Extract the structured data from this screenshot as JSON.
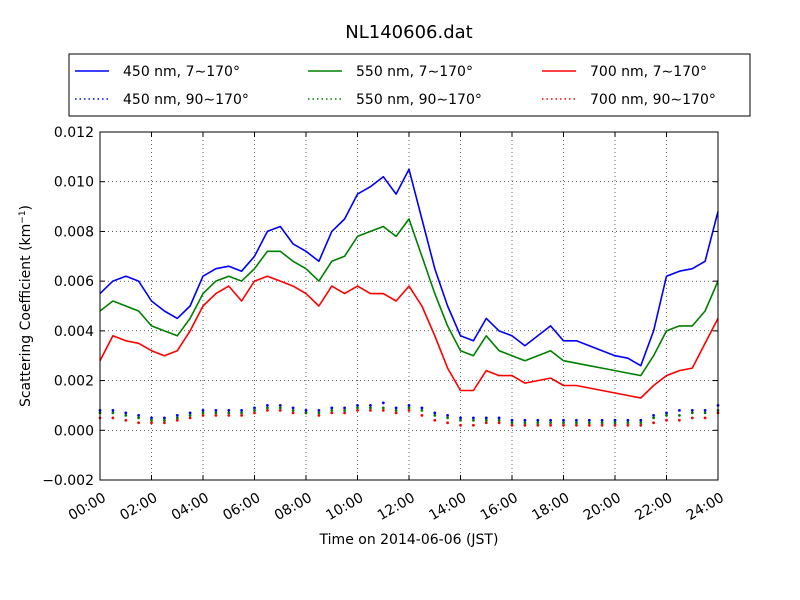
{
  "chart_data": {
    "type": "line",
    "title": "NL140606.dat",
    "xlabel": "Time on 2014-06-06 (JST)",
    "ylabel": "Scattering Coefficient (km",
    "ylabel_sup": "−1",
    "ylabel_end": ")",
    "x_unit": "hour",
    "xlim": [
      0,
      24
    ],
    "ylim": [
      -0.002,
      0.012
    ],
    "x_ticks": [
      0,
      2,
      4,
      6,
      8,
      10,
      12,
      14,
      16,
      18,
      20,
      22,
      24
    ],
    "x_tick_labels": [
      "00:00",
      "02:00",
      "04:00",
      "06:00",
      "08:00",
      "10:00",
      "12:00",
      "14:00",
      "16:00",
      "18:00",
      "20:00",
      "22:00",
      "24:00"
    ],
    "y_ticks": [
      -0.002,
      0.0,
      0.002,
      0.004,
      0.006,
      0.008,
      0.01,
      0.012
    ],
    "y_tick_labels": [
      "−0.002",
      "0.000",
      "0.002",
      "0.004",
      "0.006",
      "0.008",
      "0.010",
      "0.012"
    ],
    "grid": true,
    "legend_placement": "top, above plot (3 columns)",
    "x": [
      0,
      0.5,
      1,
      1.5,
      2,
      2.5,
      3,
      3.5,
      4,
      4.5,
      5,
      5.5,
      6,
      6.5,
      7,
      7.5,
      8,
      8.5,
      9,
      9.5,
      10,
      10.5,
      11,
      11.5,
      12,
      12.5,
      13,
      13.5,
      14,
      14.5,
      15,
      15.5,
      16,
      16.5,
      17,
      17.5,
      18,
      18.5,
      19,
      19.5,
      20,
      20.5,
      21,
      21.5,
      22,
      22.5,
      23,
      23.5,
      24
    ],
    "series": [
      {
        "name": "450 nm, 7∼170°",
        "color": "#0000ff",
        "style": "solid",
        "values": [
          0.0055,
          0.006,
          0.0062,
          0.006,
          0.0052,
          0.0048,
          0.0045,
          0.005,
          0.0062,
          0.0065,
          0.0066,
          0.0064,
          0.007,
          0.008,
          0.0082,
          0.0075,
          0.0072,
          0.0068,
          0.008,
          0.0085,
          0.0095,
          0.0098,
          0.0102,
          0.0095,
          0.0105,
          0.0085,
          0.0065,
          0.005,
          0.0038,
          0.0036,
          0.0045,
          0.004,
          0.0038,
          0.0034,
          0.0038,
          0.0042,
          0.0036,
          0.0036,
          0.0034,
          0.0032,
          0.003,
          0.0029,
          0.0026,
          0.004,
          0.0062,
          0.0064,
          0.0065,
          0.0068,
          0.0088
        ]
      },
      {
        "name": "450 nm, 90∼170°",
        "color": "#0000ff",
        "style": "dotted",
        "values": [
          0.0008,
          0.0008,
          0.0007,
          0.0006,
          0.0005,
          0.0005,
          0.0006,
          0.0007,
          0.0008,
          0.0008,
          0.0008,
          0.0008,
          0.0009,
          0.001,
          0.001,
          0.0009,
          0.0008,
          0.0008,
          0.0009,
          0.0009,
          0.001,
          0.001,
          0.0011,
          0.0009,
          0.001,
          0.0009,
          0.0007,
          0.0006,
          0.0005,
          0.0005,
          0.0005,
          0.0005,
          0.0004,
          0.0004,
          0.0004,
          0.0004,
          0.0004,
          0.0004,
          0.0004,
          0.0004,
          0.0004,
          0.0004,
          0.0004,
          0.0006,
          0.0007,
          0.0008,
          0.0008,
          0.0008,
          0.001
        ]
      },
      {
        "name": "550 nm, 7∼170°",
        "color": "#008000",
        "style": "solid",
        "values": [
          0.0048,
          0.0052,
          0.005,
          0.0048,
          0.0042,
          0.004,
          0.0038,
          0.0045,
          0.0055,
          0.006,
          0.0062,
          0.006,
          0.0065,
          0.0072,
          0.0072,
          0.0068,
          0.0065,
          0.006,
          0.0068,
          0.007,
          0.0078,
          0.008,
          0.0082,
          0.0078,
          0.0085,
          0.007,
          0.0055,
          0.0042,
          0.0032,
          0.003,
          0.0038,
          0.0032,
          0.003,
          0.0028,
          0.003,
          0.0032,
          0.0028,
          0.0027,
          0.0026,
          0.0025,
          0.0024,
          0.0023,
          0.0022,
          0.003,
          0.004,
          0.0042,
          0.0042,
          0.0048,
          0.006
        ]
      },
      {
        "name": "550 nm, 90∼170°",
        "color": "#008000",
        "style": "dotted",
        "values": [
          0.0007,
          0.0007,
          0.0006,
          0.0005,
          0.0004,
          0.0004,
          0.0005,
          0.0006,
          0.0007,
          0.0007,
          0.0007,
          0.0007,
          0.0008,
          0.0009,
          0.0009,
          0.0008,
          0.0007,
          0.0007,
          0.0008,
          0.0008,
          0.0009,
          0.0009,
          0.0009,
          0.0008,
          0.0009,
          0.0008,
          0.0006,
          0.0005,
          0.0004,
          0.0004,
          0.0004,
          0.0004,
          0.0003,
          0.0003,
          0.0003,
          0.0003,
          0.0003,
          0.0003,
          0.0003,
          0.0003,
          0.0003,
          0.0003,
          0.0003,
          0.0005,
          0.0006,
          0.0006,
          0.0007,
          0.0007,
          0.0008
        ]
      },
      {
        "name": "700 nm, 7∼170°",
        "color": "#ff0000",
        "style": "solid",
        "values": [
          0.0028,
          0.0038,
          0.0036,
          0.0035,
          0.0032,
          0.003,
          0.0032,
          0.004,
          0.005,
          0.0055,
          0.0058,
          0.0052,
          0.006,
          0.0062,
          0.006,
          0.0058,
          0.0055,
          0.005,
          0.0058,
          0.0055,
          0.0058,
          0.0055,
          0.0055,
          0.0052,
          0.0058,
          0.005,
          0.0038,
          0.0025,
          0.0016,
          0.0016,
          0.0024,
          0.0022,
          0.0022,
          0.0019,
          0.002,
          0.0021,
          0.0018,
          0.0018,
          0.0017,
          0.0016,
          0.0015,
          0.0014,
          0.0013,
          0.0018,
          0.0022,
          0.0024,
          0.0025,
          0.0035,
          0.0045
        ]
      },
      {
        "name": "700 nm, 90∼170°",
        "color": "#ff0000",
        "style": "dotted",
        "values": [
          0.0005,
          0.0005,
          0.0004,
          0.0003,
          0.0003,
          0.0003,
          0.0004,
          0.0005,
          0.0006,
          0.0006,
          0.0006,
          0.0006,
          0.0007,
          0.0008,
          0.0008,
          0.0007,
          0.0007,
          0.0006,
          0.0007,
          0.0007,
          0.0008,
          0.0008,
          0.0008,
          0.0007,
          0.0008,
          0.0006,
          0.0004,
          0.0003,
          0.0002,
          0.0002,
          0.0003,
          0.0003,
          0.0002,
          0.0002,
          0.0002,
          0.0002,
          0.0002,
          0.0002,
          0.0002,
          0.0002,
          0.0002,
          0.0002,
          0.0002,
          0.0003,
          0.0004,
          0.0004,
          0.0005,
          0.0005,
          0.0007
        ]
      }
    ]
  }
}
